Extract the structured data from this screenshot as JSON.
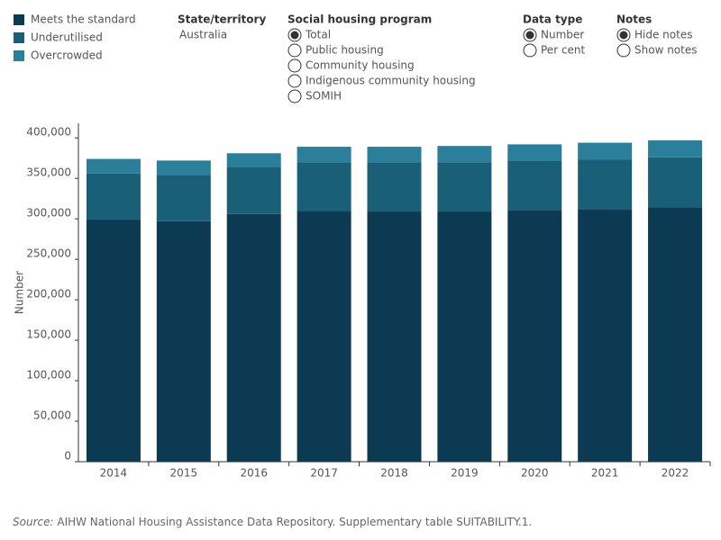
{
  "chart_data": {
    "type": "stacked_bar",
    "y_label": "Number",
    "categories": [
      "2014",
      "2015",
      "2016",
      "2017",
      "2018",
      "2019",
      "2020",
      "2021",
      "2022"
    ],
    "series": [
      {
        "name": "Meets the standard",
        "color": "#0b3a52",
        "values": [
          299000,
          297000,
          306000,
          310000,
          309000,
          309000,
          311000,
          312000,
          314000
        ]
      },
      {
        "name": "Underutilised",
        "color": "#1a5f78",
        "values": [
          57000,
          57000,
          58000,
          60000,
          61000,
          61000,
          61000,
          61000,
          62000
        ]
      },
      {
        "name": "Overcrowded",
        "color": "#2a7f9a",
        "values": [
          18000,
          18000,
          17000,
          19000,
          19000,
          20000,
          20000,
          21000,
          21000
        ]
      }
    ],
    "ylim": [
      0,
      418000
    ],
    "yticks": [
      0,
      {
        "value": 50000,
        "label": "50,000"
      },
      {
        "value": 100000,
        "label": "100,000"
      },
      {
        "value": 150000,
        "label": "150,000"
      },
      {
        "value": 200000,
        "label": "200,000"
      },
      {
        "value": 250000,
        "label": "250,000"
      },
      {
        "value": 300000,
        "label": "300,000"
      },
      {
        "value": 350000,
        "label": "350,000"
      },
      {
        "value": 400000,
        "label": "400,000"
      }
    ],
    "grid": false,
    "legend": "top-left"
  },
  "filters": {
    "state": {
      "label": "State/territory",
      "value": "Australia"
    },
    "radio_groups": [
      {
        "label": "Social housing program",
        "options": [
          "Total",
          "Public housing",
          "Community housing",
          "Indigenous community housing",
          "SOMIH"
        ],
        "selected": 0
      },
      {
        "label": "Data type",
        "options": [
          "Number",
          "Per cent"
        ],
        "selected": 0
      },
      {
        "label": "Notes",
        "options": [
          "Hide notes",
          "Show notes"
        ],
        "selected": 0
      }
    ]
  },
  "source": {
    "prefix": "Source:",
    "text": "AIHW National Housing Assistance Data Repository. Supplementary table SUITABILITY.1."
  }
}
